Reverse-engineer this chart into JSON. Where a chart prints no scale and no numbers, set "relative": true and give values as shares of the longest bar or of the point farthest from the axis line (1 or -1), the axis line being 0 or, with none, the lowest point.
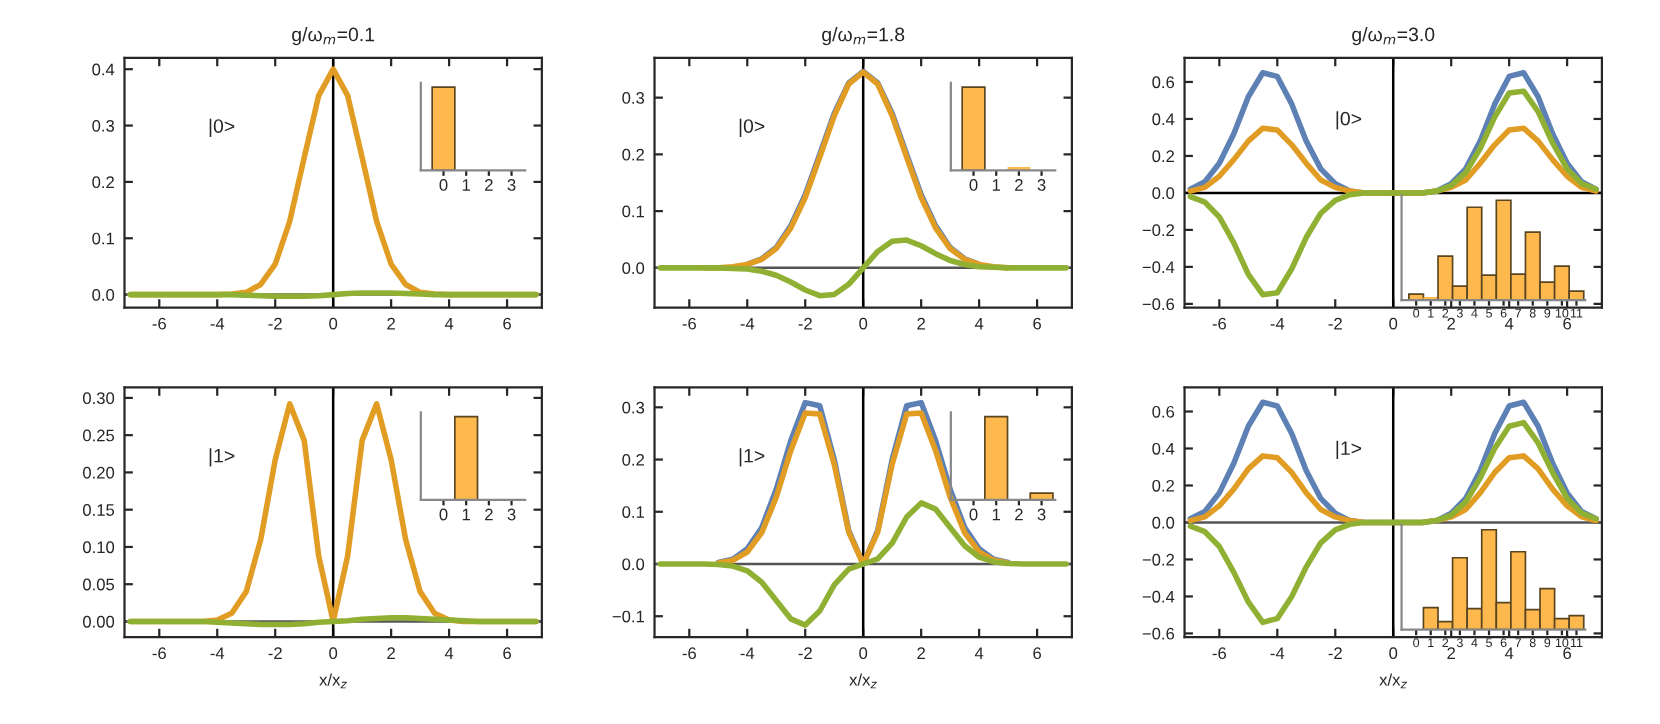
{
  "chart_data": [
    {
      "type": "line",
      "title": "g/ω$_{m}$=0.1",
      "annotations": [
        "|0>"
      ],
      "x": [
        -7,
        -6.5,
        -6,
        -5.5,
        -5,
        -4.5,
        -4,
        -3.5,
        -3,
        -2.5,
        -2,
        -1.5,
        -1,
        -0.5,
        0,
        0.5,
        1,
        1.5,
        2,
        2.5,
        3,
        3.5,
        4,
        4.5,
        5,
        5.5,
        6,
        6.5,
        7
      ],
      "series": [
        {
          "color": "#e19c24",
          "values": [
            0,
            0,
            0,
            0,
            0,
            0,
            0,
            0.001,
            0.004,
            0.018,
            0.054,
            0.13,
            0.243,
            0.353,
            0.4,
            0.353,
            0.243,
            0.13,
            0.054,
            0.018,
            0.004,
            0.001,
            0,
            0,
            0,
            0,
            0,
            0,
            0
          ]
        },
        {
          "color": "#8fb032",
          "values": [
            0,
            0,
            0,
            0,
            0,
            0,
            0,
            0,
            -0.001,
            -0.002,
            -0.003,
            -0.003,
            -0.003,
            -0.002,
            0,
            0.002,
            0.003,
            0.003,
            0.003,
            0.002,
            0.001,
            0,
            0,
            0,
            0,
            0,
            0,
            0,
            0
          ]
        }
      ],
      "xlim": [
        -7.2,
        7.2
      ],
      "xticks": [
        -6,
        -4,
        -2,
        0,
        2,
        4,
        6
      ],
      "ylim": [
        -0.023,
        0.42
      ],
      "yticks": [
        {
          "value": 0,
          "label": "0.0"
        },
        {
          "value": 0.1,
          "label": "0.1"
        },
        {
          "value": 0.2,
          "label": "0.2"
        },
        {
          "value": 0.3,
          "label": "0.3"
        },
        {
          "value": 0.4,
          "label": "0.4"
        }
      ],
      "ref_lines": [
        {
          "axis": "x",
          "value": 0,
          "color": "#000000"
        },
        {
          "axis": "y",
          "value": 0,
          "color": "#555555"
        }
      ]
    },
    {
      "type": "bar",
      "relative": true,
      "categories": [
        "0",
        "1",
        "2",
        "3"
      ],
      "values": [
        1,
        0,
        0,
        0
      ],
      "color": "#fdb84e",
      "tick_labels": "x"
    },
    {
      "type": "line",
      "title": "g/ω$_{m}$=1.8",
      "annotations": [
        "|0>"
      ],
      "x": [
        -7,
        -6.5,
        -6,
        -5.5,
        -5,
        -4.5,
        -4,
        -3.5,
        -3,
        -2.5,
        -2,
        -1.5,
        -1,
        -0.5,
        0,
        0.5,
        1,
        1.5,
        2,
        2.5,
        3,
        3.5,
        4,
        4.5,
        5,
        5.5,
        6,
        6.5,
        7
      ],
      "series": [
        {
          "color": "#5e81b5",
          "values": [
            null,
            null,
            null,
            null,
            null,
            null,
            0.006,
            0.016,
            0.036,
            0.074,
            0.129,
            0.2,
            0.272,
            0.326,
            0.346,
            0.326,
            0.272,
            0.2,
            0.129,
            0.074,
            0.036,
            0.016,
            0.006,
            null,
            null,
            null,
            null,
            null,
            null
          ]
        },
        {
          "color": "#e19c24",
          "values": [
            null,
            null,
            null,
            0,
            0,
            0.002,
            0.006,
            0.015,
            0.034,
            0.07,
            0.124,
            0.195,
            0.268,
            0.324,
            0.345,
            0.324,
            0.268,
            0.195,
            0.124,
            0.07,
            0.034,
            0.015,
            0.006,
            0.002,
            0,
            null,
            null,
            null,
            null
          ]
        },
        {
          "color": "#8fb032",
          "values": [
            0,
            0,
            0,
            0,
            0,
            -0.001,
            -0.002,
            -0.006,
            -0.013,
            -0.025,
            -0.039,
            -0.049,
            -0.047,
            -0.029,
            0,
            0.029,
            0.047,
            0.049,
            0.039,
            0.025,
            0.013,
            0.006,
            0.002,
            0.001,
            0,
            0,
            0,
            0,
            0
          ]
        }
      ],
      "xlim": [
        -7.2,
        7.2
      ],
      "xticks": [
        -6,
        -4,
        -2,
        0,
        2,
        4,
        6
      ],
      "ylim": [
        -0.07,
        0.37
      ],
      "yticks": [
        {
          "value": 0,
          "label": "0.0"
        },
        {
          "value": 0.1,
          "label": "0.1"
        },
        {
          "value": 0.2,
          "label": "0.2"
        },
        {
          "value": 0.3,
          "label": "0.3"
        }
      ],
      "ref_lines": [
        {
          "axis": "x",
          "value": 0,
          "color": "#000000"
        },
        {
          "axis": "y",
          "value": 0,
          "color": "#555555"
        }
      ]
    },
    {
      "type": "bar",
      "relative": true,
      "categories": [
        "0",
        "1",
        "2",
        "3"
      ],
      "values": [
        1,
        0,
        0.04,
        0
      ],
      "color": "#fdb84e",
      "tick_labels": "x"
    },
    {
      "type": "line",
      "title": "g/ω$_{m}$=3.0",
      "annotations": [
        "|0>"
      ],
      "x": [
        -7,
        -6.5,
        -6,
        -5.5,
        -5,
        -4.5,
        -4,
        -3.5,
        -3,
        -2.5,
        -2,
        -1.5,
        -1,
        -0.5,
        0,
        0.5,
        1,
        1.5,
        2,
        2.5,
        3,
        3.5,
        4,
        4.5,
        5,
        5.5,
        6,
        6.5,
        7
      ],
      "series": [
        {
          "color": "#5e81b5",
          "values": [
            0.02,
            0.06,
            0.16,
            0.32,
            0.52,
            0.65,
            0.63,
            0.48,
            0.28,
            0.13,
            0.05,
            0.01,
            0,
            0,
            0,
            0,
            0,
            0.01,
            0.05,
            0.13,
            0.28,
            0.48,
            0.63,
            0.65,
            0.52,
            0.32,
            0.16,
            0.06,
            0.02
          ]
        },
        {
          "color": "#e19c24",
          "values": [
            0.01,
            0.03,
            0.09,
            0.18,
            0.28,
            0.35,
            0.34,
            0.26,
            0.16,
            0.07,
            0.03,
            0.01,
            0,
            0,
            0,
            0,
            0,
            0.01,
            0.03,
            0.07,
            0.16,
            0.26,
            0.34,
            0.35,
            0.28,
            0.18,
            0.09,
            0.03,
            0.01
          ]
        },
        {
          "color": "#8fb032",
          "values": [
            -0.02,
            -0.05,
            -0.13,
            -0.27,
            -0.44,
            -0.55,
            -0.54,
            -0.41,
            -0.24,
            -0.11,
            -0.04,
            -0.01,
            0,
            0,
            0,
            0,
            0,
            0.01,
            0.04,
            0.11,
            0.24,
            0.41,
            0.54,
            0.55,
            0.44,
            0.27,
            0.13,
            0.05,
            0.02
          ]
        }
      ],
      "xlim": [
        -7.2,
        7.2
      ],
      "xticks": [
        -6,
        -4,
        -2,
        0,
        2,
        4,
        6
      ],
      "ylim": [
        -0.62,
        0.73
      ],
      "yticks": [
        {
          "value": -0.6,
          "label": "−0.6"
        },
        {
          "value": -0.4,
          "label": "−0.4"
        },
        {
          "value": -0.2,
          "label": "−0.2"
        },
        {
          "value": 0,
          "label": "0.0"
        },
        {
          "value": 0.2,
          "label": "0.2"
        },
        {
          "value": 0.4,
          "label": "0.4"
        },
        {
          "value": 0.6,
          "label": "0.6"
        }
      ],
      "ref_lines": [
        {
          "axis": "x",
          "value": 0,
          "color": "#000000"
        },
        {
          "axis": "y",
          "value": 0,
          "color": "#000000"
        }
      ]
    },
    {
      "type": "bar",
      "relative": true,
      "categories": [
        "0",
        "1",
        "2",
        "3",
        "4",
        "5",
        "6",
        "7",
        "8",
        "9",
        "10",
        "11"
      ],
      "values": [
        0.06,
        0.03,
        0.44,
        0.14,
        0.93,
        0.25,
        1,
        0.26,
        0.68,
        0.18,
        0.34,
        0.09
      ],
      "color": "#fdb84e",
      "tick_labels": "x"
    },
    {
      "type": "line",
      "xlabel": "x/x$_{z}$",
      "annotations": [
        "|1>"
      ],
      "x": [
        -7,
        -6.5,
        -6,
        -5.5,
        -5,
        -4.5,
        -4,
        -3.5,
        -3,
        -2.5,
        -2,
        -1.5,
        -1,
        -0.5,
        0,
        0.5,
        1,
        1.5,
        2,
        2.5,
        3,
        3.5,
        4,
        4.5,
        5,
        5.5,
        6,
        6.5,
        7
      ],
      "series": [
        {
          "color": "#e19c24",
          "values": [
            0,
            0,
            0,
            0,
            0,
            0,
            0.002,
            0.011,
            0.04,
            0.11,
            0.217,
            0.292,
            0.243,
            0.088,
            0,
            0.088,
            0.243,
            0.292,
            0.217,
            0.11,
            0.04,
            0.011,
            0.002,
            0,
            0,
            0,
            0,
            0,
            0
          ]
        },
        {
          "color": "#8fb032",
          "values": [
            0,
            0,
            0,
            0,
            0,
            0,
            -0.001,
            -0.002,
            -0.003,
            -0.004,
            -0.004,
            -0.004,
            -0.003,
            -0.001,
            0,
            0.001,
            0.003,
            0.004,
            0.005,
            0.005,
            0.004,
            0.003,
            0.002,
            0.001,
            0,
            0,
            0,
            0,
            0
          ]
        }
      ],
      "xlim": [
        -7.2,
        7.2
      ],
      "xticks": [
        -6,
        -4,
        -2,
        0,
        2,
        4,
        6
      ],
      "ylim": [
        -0.021,
        0.314
      ],
      "yticks": [
        {
          "value": 0,
          "label": "0.00"
        },
        {
          "value": 0.05,
          "label": "0.05"
        },
        {
          "value": 0.1,
          "label": "0.10"
        },
        {
          "value": 0.15,
          "label": "0.15"
        },
        {
          "value": 0.2,
          "label": "0.20"
        },
        {
          "value": 0.25,
          "label": "0.25"
        },
        {
          "value": 0.3,
          "label": "0.30"
        }
      ],
      "ref_lines": [
        {
          "axis": "x",
          "value": 0,
          "color": "#000000"
        },
        {
          "axis": "y",
          "value": 0,
          "color": "#555555"
        }
      ]
    },
    {
      "type": "bar",
      "relative": true,
      "categories": [
        "0",
        "1",
        "2",
        "3"
      ],
      "values": [
        0,
        1,
        0,
        0
      ],
      "color": "#fdb84e",
      "tick_labels": "x"
    },
    {
      "type": "line",
      "xlabel": "x/x$_{z}$",
      "annotations": [
        "|1>"
      ],
      "x": [
        -7,
        -6.5,
        -6,
        -5.5,
        -5,
        -4.5,
        -4,
        -3.5,
        -3,
        -2.5,
        -2,
        -1.5,
        -1,
        -0.5,
        0,
        0.5,
        1,
        1.5,
        2,
        2.5,
        3,
        3.5,
        4,
        4.5,
        5,
        5.5,
        6,
        6.5,
        7
      ],
      "series": [
        {
          "color": "#5e81b5",
          "values": [
            null,
            null,
            null,
            null,
            0.003,
            0.009,
            0.029,
            0.07,
            0.143,
            0.236,
            0.309,
            0.303,
            0.2,
            0.064,
            0,
            0.064,
            0.2,
            0.303,
            0.309,
            0.236,
            0.143,
            0.07,
            0.029,
            0.009,
            0.003,
            null,
            null,
            null,
            null
          ]
        },
        {
          "color": "#e19c24",
          "values": [
            null,
            null,
            null,
            null,
            0.002,
            0.007,
            0.023,
            0.06,
            0.128,
            0.217,
            0.289,
            0.287,
            0.191,
            0.061,
            0,
            0.061,
            0.191,
            0.287,
            0.289,
            0.217,
            0.128,
            0.06,
            0.023,
            0.007,
            0.002,
            null,
            null,
            null,
            null
          ]
        },
        {
          "color": "#8fb032",
          "values": [
            0,
            0,
            0,
            0,
            -0.001,
            -0.004,
            -0.013,
            -0.035,
            -0.07,
            -0.105,
            -0.117,
            -0.09,
            -0.04,
            -0.01,
            0,
            0.01,
            0.04,
            0.09,
            0.117,
            0.105,
            0.07,
            0.035,
            0.013,
            0.004,
            0.001,
            0,
            0,
            0,
            0
          ]
        }
      ],
      "xlim": [
        -7.2,
        7.2
      ],
      "xticks": [
        -6,
        -4,
        -2,
        0,
        2,
        4,
        6
      ],
      "ylim": [
        -0.14,
        0.338
      ],
      "yticks": [
        {
          "value": -0.1,
          "label": "−0.1"
        },
        {
          "value": 0,
          "label": "0.0"
        },
        {
          "value": 0.1,
          "label": "0.1"
        },
        {
          "value": 0.2,
          "label": "0.2"
        },
        {
          "value": 0.3,
          "label": "0.3"
        }
      ],
      "ref_lines": [
        {
          "axis": "x",
          "value": 0,
          "color": "#000000"
        },
        {
          "axis": "y",
          "value": 0,
          "color": "#555555"
        }
      ]
    },
    {
      "type": "bar",
      "relative": true,
      "categories": [
        "0",
        "1",
        "2",
        "3"
      ],
      "values": [
        0,
        1,
        0,
        0.08
      ],
      "color": "#fdb84e",
      "tick_labels": "x"
    },
    {
      "type": "line",
      "xlabel": "x/x$_{z}$",
      "annotations": [
        "|1>"
      ],
      "x": [
        -7,
        -6.5,
        -6,
        -5.5,
        -5,
        -4.5,
        -4,
        -3.5,
        -3,
        -2.5,
        -2,
        -1.5,
        -1,
        -0.5,
        0,
        0.5,
        1,
        1.5,
        2,
        2.5,
        3,
        3.5,
        4,
        4.5,
        5,
        5.5,
        6,
        6.5,
        7
      ],
      "series": [
        {
          "color": "#5e81b5",
          "values": [
            0.02,
            0.06,
            0.16,
            0.32,
            0.52,
            0.65,
            0.63,
            0.48,
            0.28,
            0.13,
            0.05,
            0.01,
            0,
            0,
            0,
            0,
            0,
            0.01,
            0.05,
            0.13,
            0.28,
            0.48,
            0.63,
            0.65,
            0.52,
            0.32,
            0.16,
            0.06,
            0.02
          ]
        },
        {
          "color": "#e19c24",
          "values": [
            0.01,
            0.03,
            0.09,
            0.18,
            0.29,
            0.36,
            0.35,
            0.27,
            0.16,
            0.07,
            0.03,
            0.01,
            0,
            0,
            0,
            0,
            0,
            0.01,
            0.03,
            0.07,
            0.16,
            0.27,
            0.35,
            0.36,
            0.29,
            0.18,
            0.09,
            0.03,
            0.01
          ]
        },
        {
          "color": "#8fb032",
          "values": [
            -0.02,
            -0.05,
            -0.13,
            -0.27,
            -0.43,
            -0.54,
            -0.52,
            -0.4,
            -0.24,
            -0.11,
            -0.04,
            -0.01,
            0,
            0,
            0,
            0,
            0,
            0.01,
            0.04,
            0.11,
            0.24,
            0.4,
            0.52,
            0.54,
            0.43,
            0.27,
            0.13,
            0.05,
            0.02
          ]
        }
      ],
      "xlim": [
        -7.2,
        7.2
      ],
      "xticks": [
        -6,
        -4,
        -2,
        0,
        2,
        4,
        6
      ],
      "ylim": [
        -0.62,
        0.73
      ],
      "yticks": [
        {
          "value": -0.6,
          "label": "−0.6"
        },
        {
          "value": -0.4,
          "label": "−0.4"
        },
        {
          "value": -0.2,
          "label": "−0.2"
        },
        {
          "value": 0,
          "label": "0.0"
        },
        {
          "value": 0.2,
          "label": "0.2"
        },
        {
          "value": 0.4,
          "label": "0.4"
        },
        {
          "value": 0.6,
          "label": "0.6"
        }
      ],
      "ref_lines": [
        {
          "axis": "x",
          "value": 0,
          "color": "#000000"
        },
        {
          "axis": "y",
          "value": 0,
          "color": "#555555"
        }
      ]
    },
    {
      "type": "bar",
      "relative": true,
      "categories": [
        "0",
        "1",
        "2",
        "3",
        "4",
        "5",
        "6",
        "7",
        "8",
        "9",
        "10",
        "11"
      ],
      "values": [
        0,
        0.22,
        0.08,
        0.72,
        0.21,
        1,
        0.27,
        0.78,
        0.2,
        0.41,
        0.11,
        0.14
      ],
      "color": "#fdb84e",
      "tick_labels": "x"
    }
  ]
}
